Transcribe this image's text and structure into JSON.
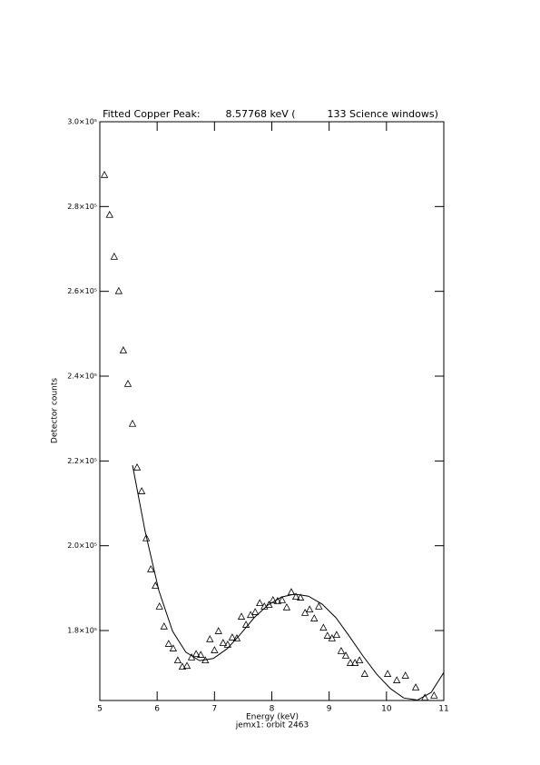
{
  "chart_data": {
    "type": "scatter",
    "title": "Fitted Copper Peak:        8.57768 keV (          133 Science windows)",
    "x_label": "Energy (keV)",
    "subtitle": "jemx1: orbit 2463",
    "y_label": "Detector counts",
    "xlim": [
      5,
      11
    ],
    "xticks": [
      5,
      6,
      7,
      8,
      9,
      10,
      11
    ],
    "ylim": [
      163500,
      300000
    ],
    "yticks": [
      {
        "value": 180000,
        "label": "1.8×10⁵"
      },
      {
        "value": 200000,
        "label": "2.0×10⁵"
      },
      {
        "value": 220000,
        "label": "2.2×10⁵"
      },
      {
        "value": 240000,
        "label": "2.4×10⁵"
      },
      {
        "value": 260000,
        "label": "2.6×10⁵"
      },
      {
        "value": 280000,
        "label": "2.8×10⁵"
      },
      {
        "value": 300000,
        "label": "3.0×10⁵"
      }
    ],
    "series": [
      {
        "name": "data",
        "color": "#000000",
        "marker": "triangle",
        "x": [
          5.08,
          5.17,
          5.25,
          5.33,
          5.41,
          5.49,
          5.57,
          5.65,
          5.73,
          5.81,
          5.89,
          5.97,
          6.04,
          6.12,
          6.2,
          6.28,
          6.36,
          6.44,
          6.52,
          6.6,
          6.68,
          6.76,
          6.84,
          6.92,
          7.0,
          7.07,
          7.15,
          7.23,
          7.31,
          7.39,
          7.47,
          7.55,
          7.63,
          7.71,
          7.79,
          7.87,
          7.95,
          8.02,
          8.1,
          8.18,
          8.26,
          8.34,
          8.42,
          8.5,
          8.58,
          8.66,
          8.74,
          8.82,
          8.9,
          8.97,
          9.05,
          9.13,
          9.21,
          9.29,
          9.37,
          9.45,
          9.53,
          9.62,
          10.02,
          10.18,
          10.33,
          10.51,
          10.67,
          10.83
        ],
        "values": [
          287400,
          277980,
          268100,
          260000,
          246000,
          238100,
          228700,
          218400,
          212800,
          201700,
          194400,
          190500,
          185600,
          180900,
          176800,
          175700,
          172900,
          171400,
          171600,
          173600,
          174400,
          174200,
          172900,
          177900,
          175300,
          179800,
          177000,
          176600,
          178300,
          178100,
          183200,
          181300,
          183600,
          184300,
          186400,
          185600,
          186000,
          187100,
          186900,
          187100,
          185400,
          189000,
          187900,
          187700,
          184100,
          184900,
          182800,
          185600,
          180600,
          178700,
          178100,
          178900,
          175100,
          174000,
          172300,
          172300,
          172900,
          169700,
          169700,
          168200,
          169300,
          166500,
          164100,
          164600
        ]
      },
      {
        "name": "fit",
        "color": "#000000",
        "marker": "line",
        "x": [
          5.57,
          5.79,
          6.03,
          6.27,
          6.5,
          6.74,
          6.98,
          7.22,
          7.45,
          7.69,
          7.93,
          8.17,
          8.4,
          8.64,
          8.88,
          9.12,
          9.35,
          9.59,
          9.83,
          10.07,
          10.3,
          10.54,
          10.78,
          11.0
        ],
        "values": [
          219000,
          203400,
          189400,
          179800,
          174900,
          172900,
          173400,
          175700,
          179100,
          183000,
          186000,
          187900,
          188600,
          188100,
          186200,
          183000,
          178700,
          174000,
          169700,
          166300,
          164100,
          163600,
          165400,
          170100
        ]
      }
    ]
  }
}
